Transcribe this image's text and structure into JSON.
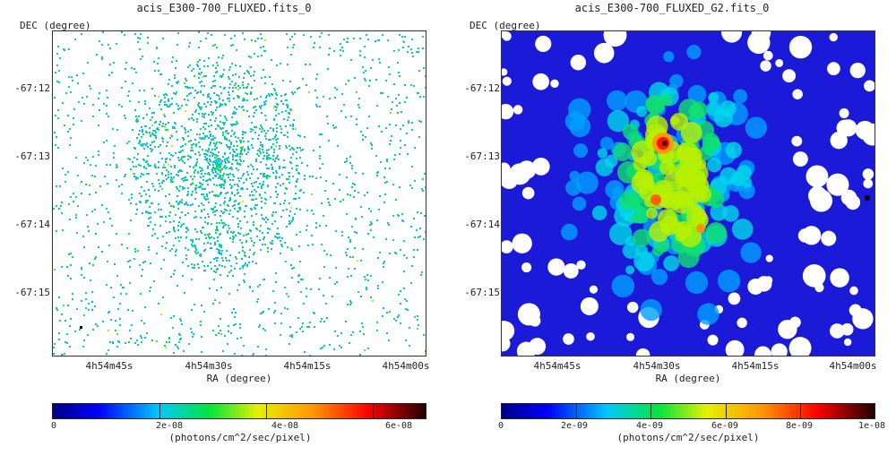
{
  "chart_data": [
    {
      "type": "heatmap",
      "title": "acis_E300-700_FLUXED.fits_0",
      "xlabel": "RA (degree)",
      "ylabel": "DEC (degree)",
      "xticks": [
        "4h54m45s",
        "4h54m30s",
        "4h54m15s",
        "4h54m00s"
      ],
      "yticks": [
        "-67:12",
        "-67:13",
        "-67:14",
        "-67:15"
      ],
      "colorbar": {
        "ticks": [
          "0",
          "2e-08",
          "4e-08",
          "6e-08"
        ],
        "tick_values": [
          0,
          2e-08,
          4e-08,
          6e-08
        ],
        "range": [
          0,
          7e-08
        ],
        "unit": "(photons/cm^2/sec/pixel)",
        "colormap": "rainbow"
      },
      "appearance": "sparse scattered cyan/green pixels, concentrated near center-upper region"
    },
    {
      "type": "heatmap",
      "title": "acis_E300-700_FLUXED_G2.fits_0",
      "xlabel": "RA (degree)",
      "ylabel": "DEC (degree)",
      "xticks": [
        "4h54m45s",
        "4h54m30s",
        "4h54m15s",
        "4h54m00s"
      ],
      "yticks": [
        "-67:12",
        "-67:13",
        "-67:14",
        "-67:15"
      ],
      "colorbar": {
        "ticks": [
          "0",
          "2e-09",
          "4e-09",
          "6e-09",
          "8e-09",
          "1e-08"
        ],
        "tick_values": [
          0,
          2e-09,
          4e-09,
          6e-09,
          8e-09,
          1e-08
        ],
        "range": [
          0,
          1e-08
        ],
        "unit": "(photons/cm^2/sec/pixel)",
        "colormap": "rainbow"
      },
      "appearance": "smoothed emission: blue background blobs, green/yellow central nebula with red peak near 4h54m30s, -67:13"
    }
  ]
}
